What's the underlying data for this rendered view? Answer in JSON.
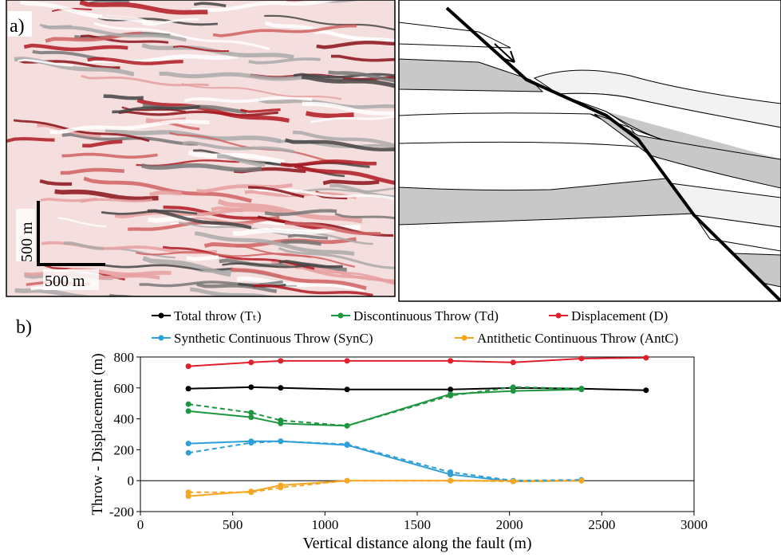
{
  "figure": {
    "panel_a_label": "a)",
    "scale_vertical": "500 m",
    "scale_horizontal": "500 m",
    "panel_b_label": "b)"
  },
  "chart_data": {
    "type": "line",
    "y_label": "Throw - Displacement (m)",
    "x_label": "Vertical distance along the fault (m)",
    "x": [
      260,
      600,
      760,
      1120,
      1680,
      2020,
      2390,
      2740
    ],
    "xlim": [
      0,
      3000
    ],
    "xticks": [
      0,
      500,
      1000,
      1500,
      2000,
      2500,
      3000
    ],
    "ylim": [
      -200,
      800
    ],
    "yticks": [
      -200,
      0,
      200,
      400,
      600,
      800
    ],
    "series": [
      {
        "name": "Total throw (Tₜ)",
        "color": "#000000",
        "values": [
          595,
          605,
          600,
          590,
          590,
          600,
          595,
          585
        ]
      },
      {
        "name": "Discontinuous Throw (Td)",
        "color": "#1e9640",
        "values": [
          450,
          410,
          370,
          355,
          560,
          580,
          590,
          null
        ]
      },
      {
        "name": "Displacement (D)",
        "color": "#e0202a",
        "values": [
          740,
          765,
          775,
          775,
          775,
          765,
          790,
          795
        ]
      },
      {
        "name": "Synthetic Continuous Throw (SynC)",
        "color": "#2f9fd8",
        "values": [
          240,
          255,
          255,
          230,
          40,
          -5,
          0,
          null
        ]
      },
      {
        "name": "Antithetic Continuous Throw (AntC)",
        "color": "#f5a623",
        "values": [
          -100,
          -70,
          -30,
          0,
          0,
          0,
          0,
          null
        ]
      },
      {
        "color": "#1e9640",
        "dashed": true,
        "values": [
          495,
          440,
          390,
          355,
          550,
          605,
          595,
          null
        ]
      },
      {
        "color": "#2f9fd8",
        "dashed": true,
        "values": [
          180,
          245,
          255,
          235,
          55,
          0,
          5,
          null
        ]
      },
      {
        "color": "#f5a623",
        "dashed": true,
        "values": [
          -75,
          -75,
          -45,
          0,
          0,
          -5,
          0,
          null
        ]
      }
    ]
  }
}
